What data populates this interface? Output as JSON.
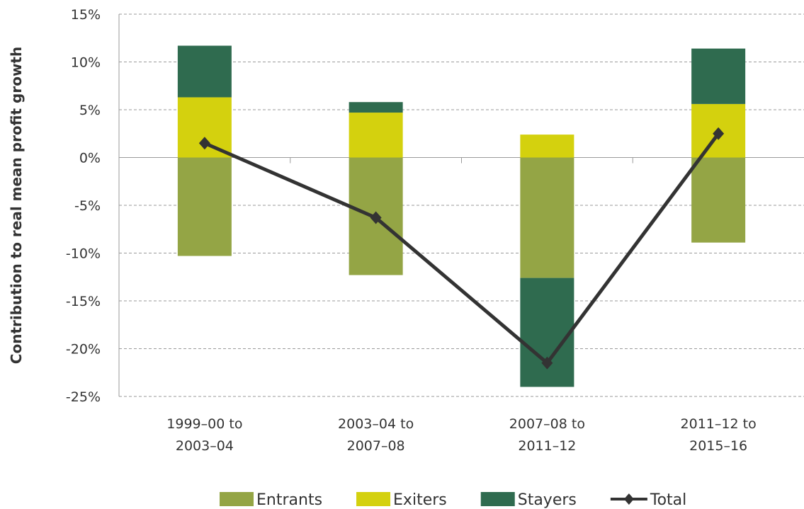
{
  "chart_data": {
    "type": "bar",
    "y_label": "Contribution to real mean profit growth",
    "categories": [
      [
        "1999–00 to",
        "2003–04"
      ],
      [
        "2003–04 to",
        "2007–08"
      ],
      [
        "2007–08 to",
        "2011–12"
      ],
      [
        "2011–12 to",
        "2015–16"
      ]
    ],
    "series": [
      {
        "name": "Entrants",
        "type": "bar",
        "color": "#94a545",
        "values": [
          -10.3,
          -12.3,
          -12.6,
          -8.9
        ]
      },
      {
        "name": "Exiters",
        "type": "bar",
        "color": "#d4d10e",
        "values": [
          6.3,
          4.7,
          2.4,
          5.6
        ]
      },
      {
        "name": "Stayers",
        "type": "bar",
        "color": "#2f6b4f",
        "values": [
          5.4,
          1.1,
          -11.4,
          5.8
        ]
      },
      {
        "name": "Total",
        "type": "line",
        "color": "#333333",
        "values": [
          1.5,
          -6.3,
          -21.5,
          2.5
        ]
      }
    ],
    "ylim": [
      -25,
      15
    ],
    "yticks": [
      {
        "value": -25,
        "label": "-25%"
      },
      {
        "value": -20,
        "label": "-20%"
      },
      {
        "value": -15,
        "label": "-15%"
      },
      {
        "value": -10,
        "label": "-10%"
      },
      {
        "value": -5,
        "label": "-5%"
      },
      {
        "value": 0,
        "label": "0%"
      },
      {
        "value": 5,
        "label": "5%"
      },
      {
        "value": 10,
        "label": "10%"
      },
      {
        "value": 15,
        "label": "15%"
      }
    ],
    "grid": true
  }
}
